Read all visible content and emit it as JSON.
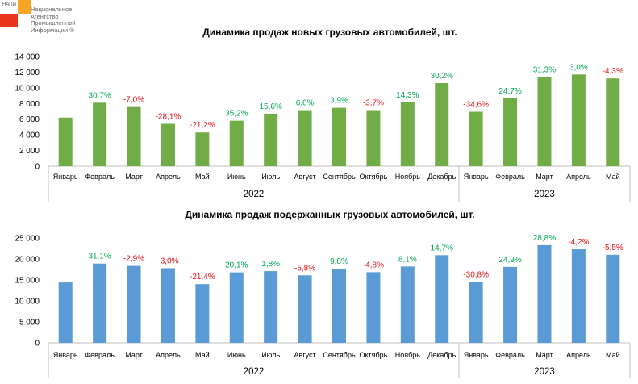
{
  "logo": {
    "abbr": "НАПИ",
    "name": "Национальное\nАгентство\nПромышленной\nИнформации ®"
  },
  "colors": {
    "positive": "#00a651",
    "negative": "#e0151a",
    "green_bar": "#70ad47",
    "blue_bar": "#5b9bd5"
  },
  "chart_data": [
    {
      "type": "bar",
      "title": "Динамика продаж новых грузовых автомобилей, шт.",
      "categories": [
        "Январь",
        "Февраль",
        "Март",
        "Апрель",
        "Май",
        "Июнь",
        "Июль",
        "Август",
        "Сентябрь",
        "Октябрь",
        "Ноябрь",
        "Декабрь",
        "Январь",
        "Февраль",
        "Март",
        "Апрель",
        "Май"
      ],
      "groups": [
        {
          "label": "2022",
          "count": 12
        },
        {
          "label": "2023",
          "count": 5
        }
      ],
      "values": [
        6200,
        8100,
        7550,
        5400,
        4300,
        5800,
        6700,
        7150,
        7450,
        7150,
        8150,
        10600,
        6950,
        8650,
        11400,
        11700,
        11200
      ],
      "data_labels": [
        "",
        "30,7%",
        "-7,0%",
        "-28,1%",
        "-21,2%",
        "35,2%",
        "15,6%",
        "6,6%",
        "3,9%",
        "-3,7%",
        "14,3%",
        "30,2%",
        "-34,6%",
        "24,7%",
        "31,3%",
        "3,0%",
        "-4,3%"
      ],
      "yticks": [
        "0",
        "2 000",
        "4 000",
        "6 000",
        "8 000",
        "10 000",
        "12 000",
        "14 000"
      ],
      "ylim": [
        0,
        14000
      ],
      "bar_color": "#70ad47",
      "grid": false,
      "legend": "none"
    },
    {
      "type": "bar",
      "title": "Динамика продаж подержанных грузовых автомобилей, шт.",
      "categories": [
        "Январь",
        "Февраль",
        "Март",
        "Апрель",
        "Май",
        "Июнь",
        "Июль",
        "Август",
        "Сентябрь",
        "Октябрь",
        "Ноябрь",
        "Декабрь",
        "Январь",
        "Февраль",
        "Март",
        "Апрель",
        "Май"
      ],
      "groups": [
        {
          "label": "2022",
          "count": 12
        },
        {
          "label": "2023",
          "count": 5
        }
      ],
      "values": [
        14400,
        18900,
        18350,
        17800,
        14000,
        16800,
        17100,
        16100,
        17700,
        16850,
        18200,
        20900,
        14500,
        18100,
        23300,
        22300,
        21000
      ],
      "data_labels": [
        "",
        "31,1%",
        "-2,9%",
        "-3,0%",
        "-21,4%",
        "20,1%",
        "1,8%",
        "-5,8%",
        "9,8%",
        "-4,8%",
        "8,1%",
        "14,7%",
        "-30,8%",
        "24,9%",
        "28,8%",
        "-4,2%",
        "-5,5%"
      ],
      "yticks": [
        "0",
        "5 000",
        "10 000",
        "15 000",
        "20 000",
        "25 000"
      ],
      "ylim": [
        0,
        25000
      ],
      "bar_color": "#5b9bd5",
      "grid": false,
      "legend": "none"
    }
  ]
}
